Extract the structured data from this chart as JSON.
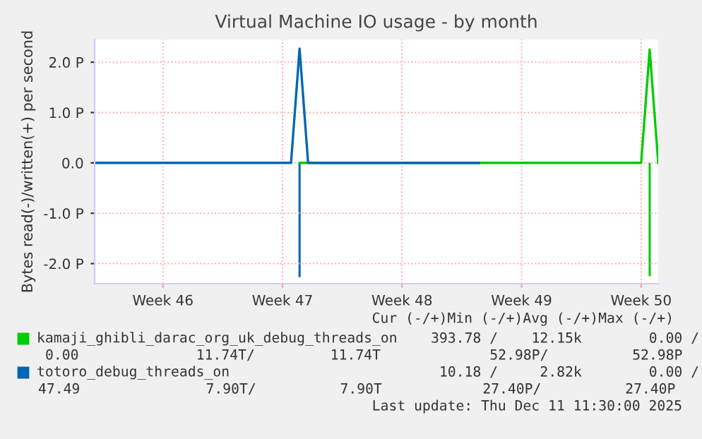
{
  "chart_data": {
    "type": "line",
    "title": "Virtual Machine IO usage - by month",
    "ylabel": "Bytes read(-)/written(+) per second",
    "categories": [
      null,
      null,
      null,
      null,
      null,
      null,
      null,
      null,
      "Week 46",
      null,
      null,
      null,
      null,
      null,
      null,
      null,
      null,
      null,
      null,
      null,
      null,
      null,
      "Week 47",
      null,
      null,
      null,
      null,
      null,
      null,
      null,
      null,
      null,
      null,
      null,
      null,
      null,
      "Week 48",
      null,
      null,
      null,
      null,
      null,
      null,
      null,
      null,
      null,
      null,
      null,
      null,
      null,
      "Week 49",
      null,
      null,
      null,
      null,
      null,
      null,
      null,
      null,
      null,
      null,
      null,
      null,
      null,
      "Week 50",
      null,
      null
    ],
    "ylim": [
      -2.4,
      2.45
    ],
    "yticks": [
      {
        "value": -2,
        "label": "-2.0 P"
      },
      {
        "value": -1,
        "label": "-1.0 P"
      },
      {
        "value": 0,
        "label": "0.0"
      },
      {
        "value": 1,
        "label": "1.0 P"
      },
      {
        "value": 2,
        "label": "2.0 P"
      }
    ],
    "grid": true,
    "legend": "bottom",
    "marker": "none",
    "line_style": "solid",
    "series": [
      {
        "name": "kamaji_ghibli_darac_org_uk_debug_threads_on",
        "color": "#00cc00",
        "values": [
          null,
          null,
          null,
          null,
          null,
          null,
          null,
          null,
          null,
          null,
          null,
          null,
          null,
          null,
          null,
          null,
          null,
          null,
          null,
          null,
          null,
          null,
          null,
          null,
          0,
          0,
          0,
          0,
          0,
          0,
          0,
          0,
          0,
          0,
          0,
          0,
          0,
          0,
          0,
          0,
          0,
          0,
          0,
          0,
          0,
          0,
          0,
          0,
          0,
          0,
          0,
          0,
          0,
          0,
          0,
          0,
          0,
          0,
          0,
          0,
          0,
          0,
          0,
          0,
          0,
          2.25,
          0
        ]
      },
      {
        "type": "bar",
        "color": "#00cc00",
        "values": [
          null,
          null,
          null,
          null,
          null,
          null,
          null,
          null,
          null,
          null,
          null,
          null,
          null,
          null,
          null,
          null,
          null,
          null,
          null,
          null,
          null,
          null,
          null,
          null,
          null,
          null,
          null,
          null,
          null,
          null,
          null,
          null,
          null,
          null,
          null,
          null,
          null,
          null,
          null,
          null,
          null,
          null,
          null,
          null,
          null,
          null,
          null,
          null,
          null,
          null,
          null,
          null,
          null,
          null,
          null,
          null,
          null,
          null,
          null,
          null,
          null,
          null,
          null,
          null,
          null,
          -2.25,
          null
        ]
      },
      {
        "name": "totoro_debug_threads_on",
        "color": "#0066b3",
        "values": [
          0,
          0,
          0,
          0,
          0,
          0,
          0,
          0,
          0,
          0,
          0,
          0,
          0,
          0,
          0,
          0,
          0,
          0,
          0,
          0,
          0,
          0,
          0,
          0,
          2.27,
          0,
          0,
          0,
          0,
          0,
          0,
          0,
          0,
          0,
          0,
          0,
          0,
          0,
          0,
          0,
          0,
          0,
          0,
          0,
          0,
          0,
          null,
          null,
          null,
          null,
          null,
          null,
          null,
          null,
          null,
          null,
          null,
          null,
          null,
          null,
          null,
          null,
          null,
          null,
          null,
          null,
          null
        ]
      },
      {
        "type": "bar",
        "color": "#0066b3",
        "values": [
          null,
          null,
          null,
          null,
          null,
          null,
          null,
          null,
          null,
          null,
          null,
          null,
          null,
          null,
          null,
          null,
          null,
          null,
          null,
          null,
          null,
          null,
          null,
          null,
          -2.27,
          null,
          null,
          null,
          null,
          null,
          null,
          null,
          null,
          null,
          null,
          null,
          null,
          null,
          null,
          null,
          null,
          null,
          null,
          null,
          null,
          null,
          null,
          null,
          null,
          null,
          null,
          null,
          null,
          null,
          null,
          null,
          null,
          null,
          null,
          null,
          null,
          null,
          null,
          null,
          null,
          null,
          null
        ]
      }
    ],
    "annotations": [
      "Cur (-/+)Min (-/+)Avg (-/+)Max (-/+)",
      "393.78 /    12.15k        0.00 /",
      "0.00              11.74T/         11.74T             52.98P/          52.98P",
      "10.18 /     2.82k        0.00 /",
      "47.49               7.90T/          7.90T            27.40P/          27.40P",
      "Last update: Thu Dec 11 11:30:00 2025"
    ]
  }
}
